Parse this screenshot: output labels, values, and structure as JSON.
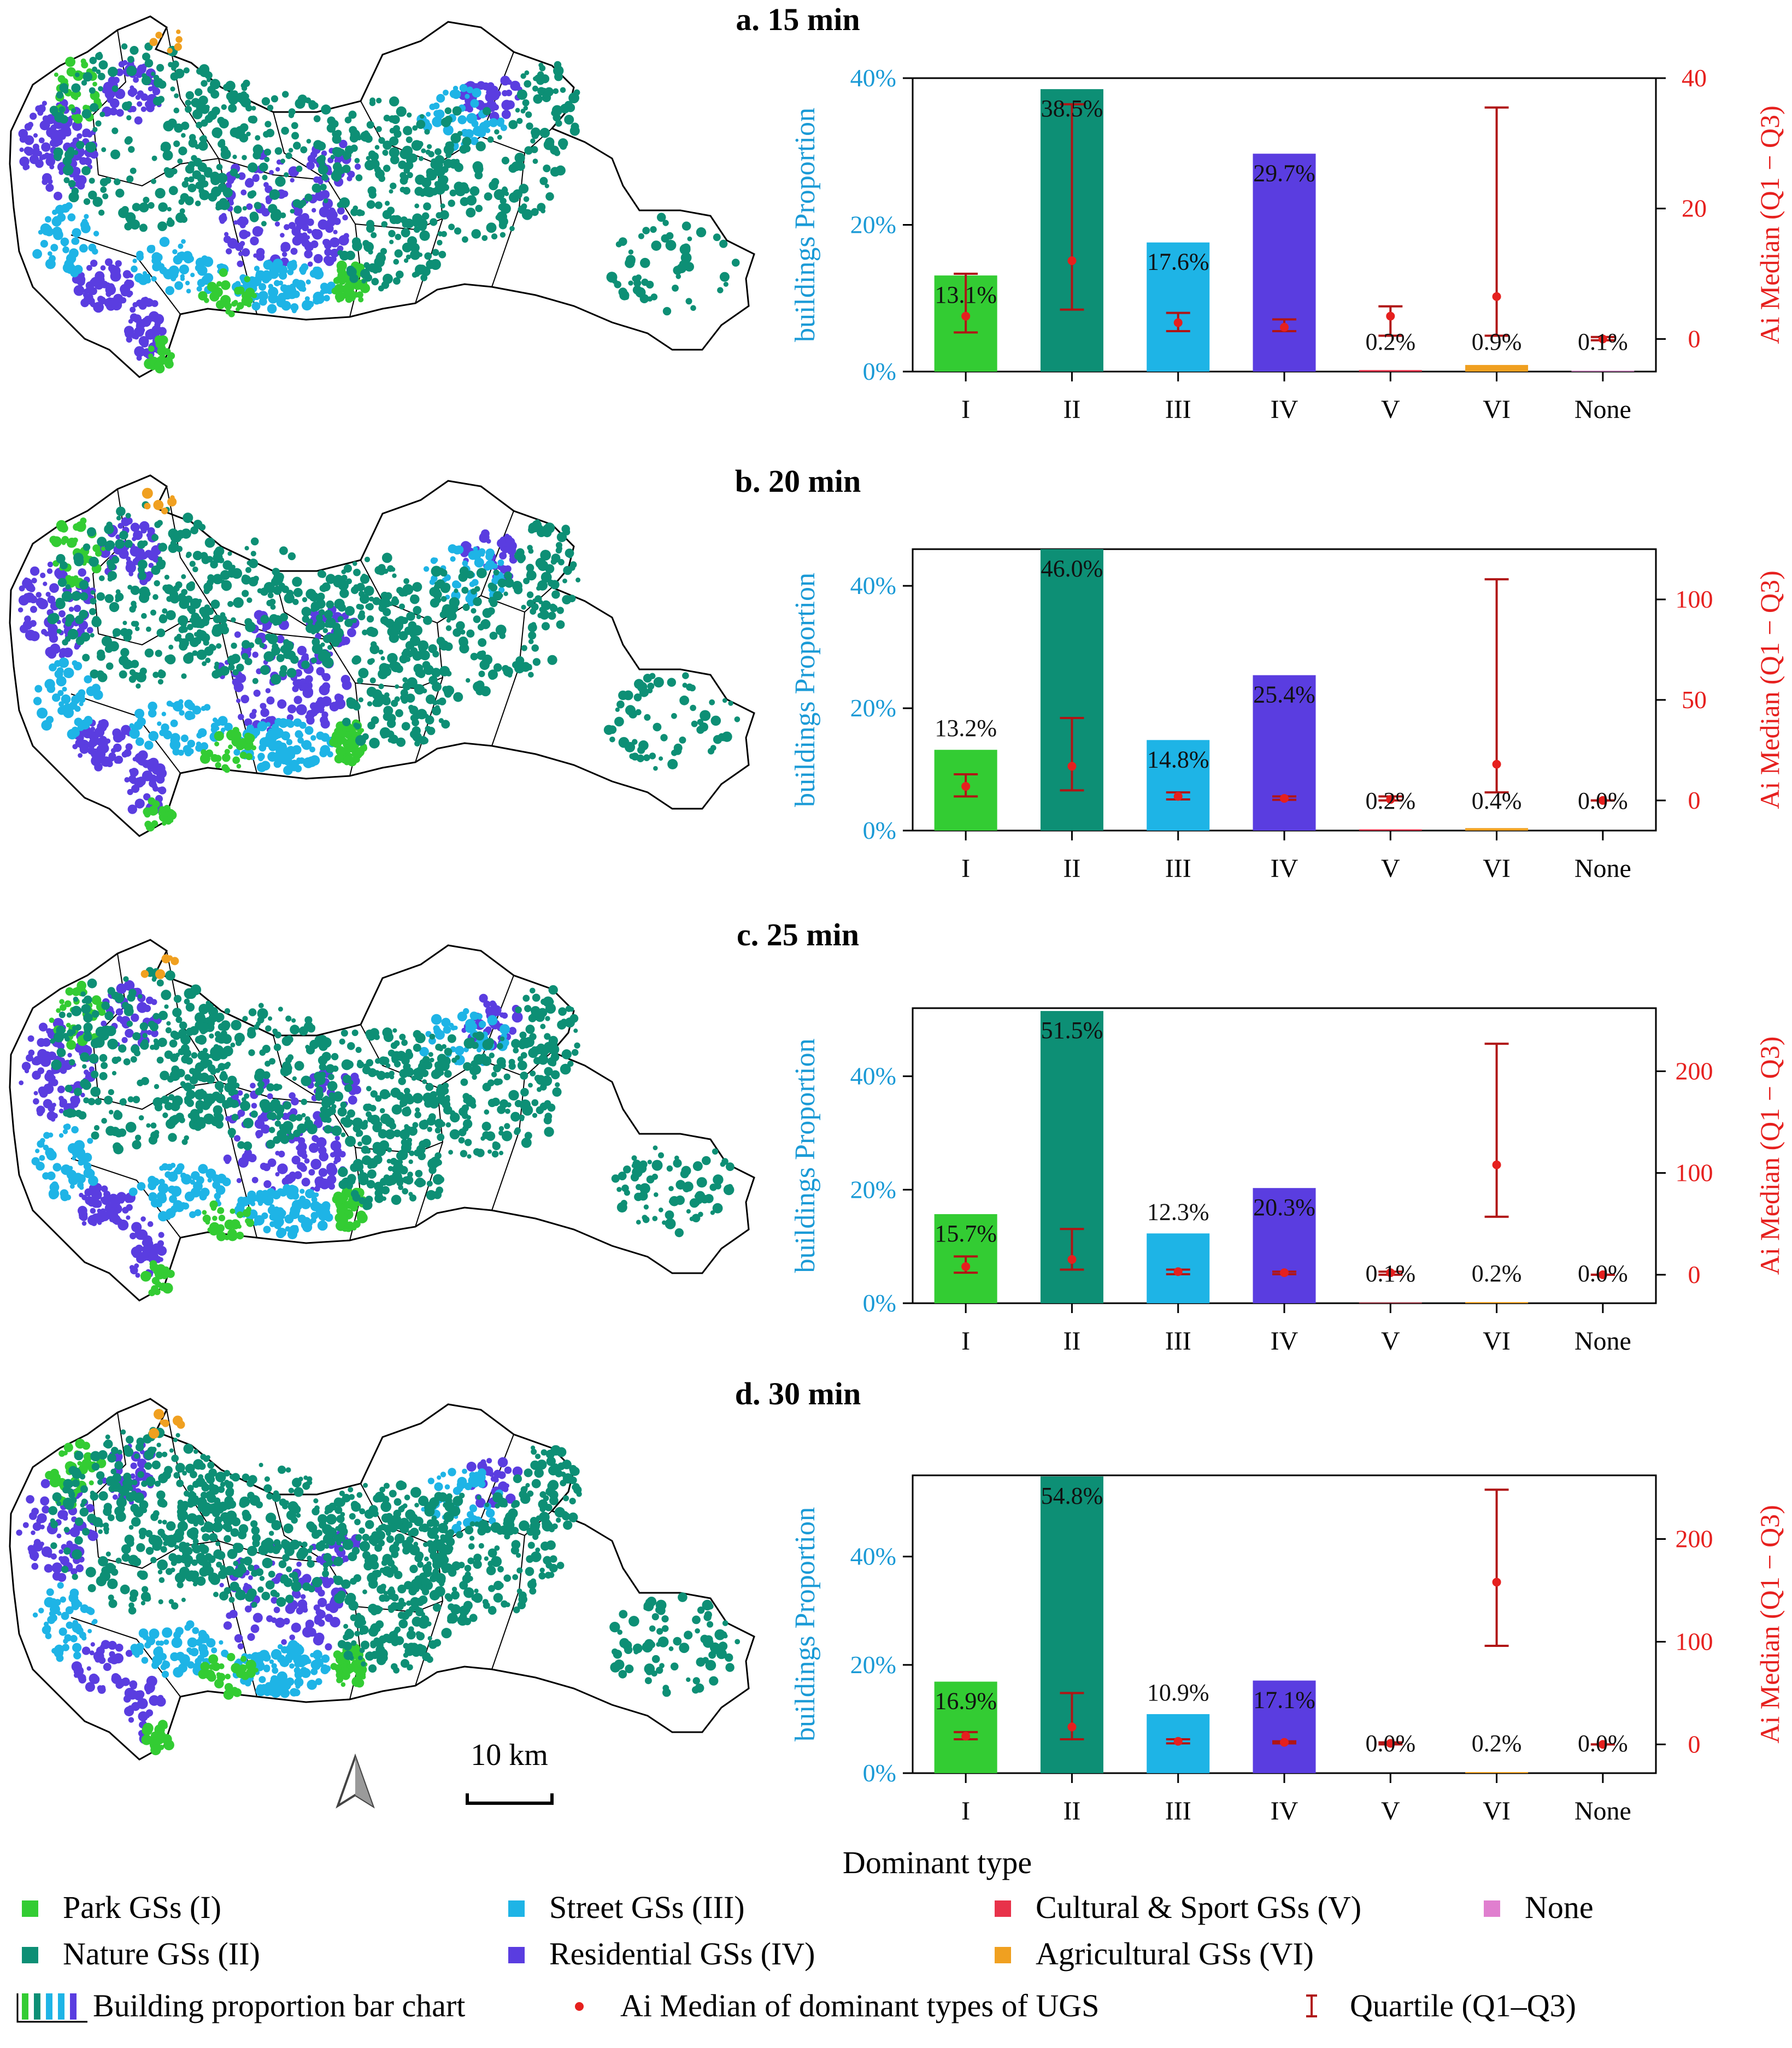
{
  "figure": {
    "x_title": "Dominant type",
    "scale_bar_label": "10 km",
    "north_arrow": "north-arrow-icon"
  },
  "colors": {
    "park": "#33cc33",
    "nature": "#0d8f75",
    "street": "#1eb4e6",
    "cultural": "#e8324a",
    "residential": "#5a3de0",
    "agricultural": "#f0a020",
    "none": "#e07fcf",
    "left_axis": "#1a9ad6",
    "right_axis": "#e6201e",
    "errorbar": "#b01515"
  },
  "chart_data": [
    {
      "type": "bar",
      "title": "a. 15 min",
      "categories": [
        "I",
        "II",
        "III",
        "IV",
        "V",
        "VI",
        "None"
      ],
      "values": [
        13.1,
        38.5,
        17.6,
        29.7,
        0.2,
        0.9,
        0.1
      ],
      "labels": [
        "13.1%",
        "38.5%",
        "17.6%",
        "29.7%",
        "0.2%",
        "0.9%",
        "0.1%"
      ],
      "xlabel": "",
      "ylabel": "buildings Proportion",
      "ylim": [
        0,
        40
      ],
      "yticks": [
        "0%",
        "20%",
        "40%"
      ],
      "y2label": "Ai Median (Q1 − Q3)",
      "y2lim": [
        -5,
        40
      ],
      "y2ticks": [
        "0",
        "20",
        "40"
      ],
      "median": [
        3.5,
        12,
        2.5,
        1.8,
        3.5,
        6.5,
        0
      ],
      "q1": [
        1,
        4.5,
        1.2,
        1.2,
        0.5,
        0.5,
        -0.2
      ],
      "q3": [
        10,
        36,
        4,
        3,
        5,
        35.5,
        0.3
      ]
    },
    {
      "type": "bar",
      "title": "b. 20 min",
      "categories": [
        "I",
        "II",
        "III",
        "IV",
        "V",
        "VI",
        "None"
      ],
      "values": [
        13.2,
        46.0,
        14.8,
        25.4,
        0.2,
        0.4,
        0.0
      ],
      "labels": [
        "13.2%",
        "46.0%",
        "14.8%",
        "25.4%",
        "0.2%",
        "0.4%",
        "0.0%"
      ],
      "xlabel": "",
      "ylabel": "buildings Proportion",
      "ylim": [
        0,
        46
      ],
      "yticks": [
        "0%",
        "20%",
        "40%"
      ],
      "y2label": "Ai Median (Q1 − Q3)",
      "y2lim": [
        -15,
        125
      ],
      "y2ticks": [
        "0",
        "50",
        "100"
      ],
      "median": [
        7,
        17,
        2,
        1,
        0.5,
        18,
        0
      ],
      "q1": [
        2,
        5,
        0.5,
        0.3,
        0,
        4,
        0
      ],
      "q3": [
        13,
        41,
        4,
        2,
        2,
        110,
        0
      ]
    },
    {
      "type": "bar",
      "title": "c. 25 min",
      "categories": [
        "I",
        "II",
        "III",
        "IV",
        "V",
        "VI",
        "None"
      ],
      "values": [
        15.7,
        51.5,
        12.3,
        20.3,
        0.1,
        0.2,
        0.0
      ],
      "labels": [
        "15.7%",
        "51.5%",
        "12.3%",
        "20.3%",
        "0.1%",
        "0.2%",
        "0.0%"
      ],
      "xlabel": "",
      "ylabel": "buildings Proportion",
      "ylim": [
        0,
        52
      ],
      "yticks": [
        "0%",
        "20%",
        "40%"
      ],
      "y2label": "Ai Median (Q1 − Q3)",
      "y2lim": [
        -28,
        262
      ],
      "y2ticks": [
        "0",
        "100",
        "200"
      ],
      "median": [
        8,
        15,
        3,
        2,
        2,
        108,
        0
      ],
      "q1": [
        2,
        5,
        0.5,
        0.5,
        0,
        57,
        0
      ],
      "q3": [
        18,
        45,
        5,
        3,
        3,
        227,
        0
      ]
    },
    {
      "type": "bar",
      "title": "d. 30 min",
      "categories": [
        "I",
        "II",
        "III",
        "IV",
        "V",
        "VI",
        "None"
      ],
      "values": [
        16.9,
        54.8,
        10.9,
        17.1,
        0.0,
        0.2,
        0.0
      ],
      "labels": [
        "16.9%",
        "54.8%",
        "10.9%",
        "17.1%",
        "0.0%",
        "0.2%",
        "0.0%"
      ],
      "xlabel": "",
      "ylabel": "buildings Proportion",
      "ylim": [
        0,
        55
      ],
      "yticks": [
        "0%",
        "20%",
        "40%"
      ],
      "y2label": "Ai Median (Q1 − Q3)",
      "y2lim": [
        -28,
        262
      ],
      "y2ticks": [
        "0",
        "100",
        "200"
      ],
      "median": [
        8,
        17,
        3,
        2,
        1,
        158,
        0
      ],
      "q1": [
        5,
        5,
        1,
        1,
        0,
        96,
        0
      ],
      "q3": [
        12,
        50,
        5,
        3,
        2,
        248,
        0
      ]
    }
  ],
  "legend": {
    "items": [
      {
        "label": "Park GSs (I)",
        "color": "#33cc33"
      },
      {
        "label": "Street GSs (III)",
        "color": "#1eb4e6"
      },
      {
        "label": "Cultural & Sport GSs (V)",
        "color": "#e8324a"
      },
      {
        "label": "None",
        "color": "#e07fcf"
      },
      {
        "label": "Nature GSs (II)",
        "color": "#0d8f75"
      },
      {
        "label": "Residential GSs (IV)",
        "color": "#5a3de0"
      },
      {
        "label": "Agricultural GSs (VI)",
        "color": "#f0a020"
      }
    ],
    "bar_label": "Building proportion bar chart",
    "median_label": "Ai Median of dominant types of UGS",
    "quartile_label": "Quartile (Q1–Q3)"
  }
}
